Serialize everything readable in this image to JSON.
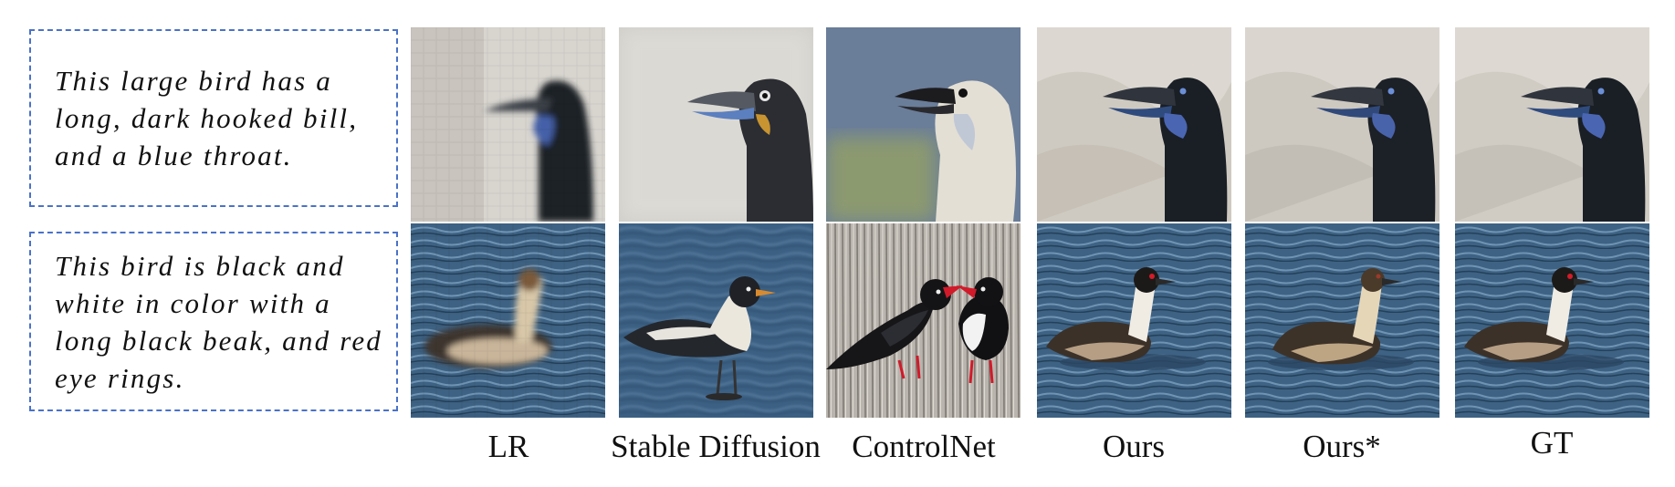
{
  "prompts": [
    "This large bird has a long, dark hooked bill, and a blue throat.",
    "This bird is black and white in color with a long black beak, and red eye rings."
  ],
  "columns": [
    "LR",
    "Stable Diffusion",
    "ControlNet",
    "Ours",
    "Ours*",
    "GT"
  ],
  "rows": [
    {
      "subject": "cormorant head with blue throat"
    },
    {
      "subject": "grebe swimming on water"
    }
  ]
}
